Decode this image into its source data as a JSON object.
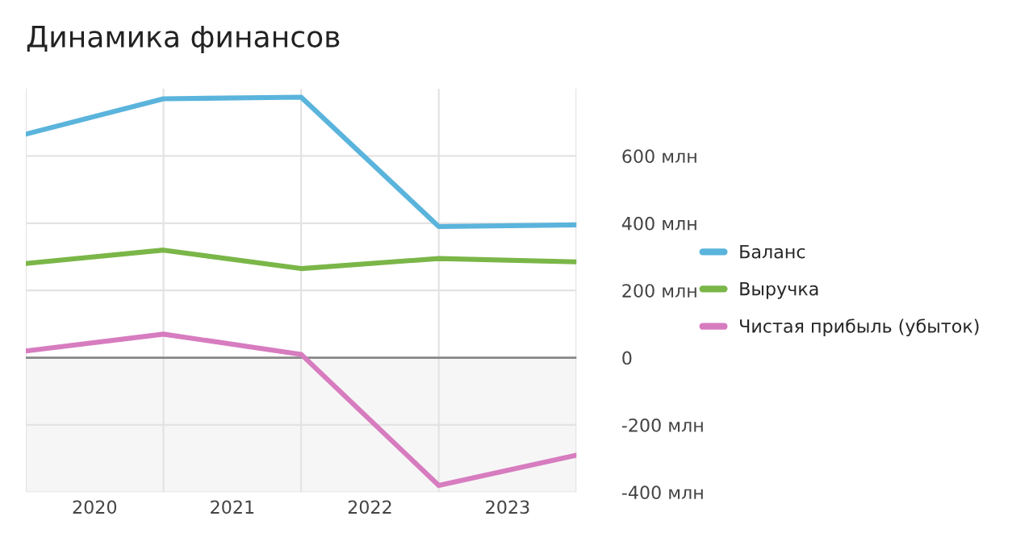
{
  "chart_data": {
    "type": "line",
    "title": "Динамика финансов",
    "x": [
      2020,
      2021,
      2022,
      2023,
      2024
    ],
    "series": [
      {
        "name": "Баланс",
        "color": "#5ab4dc",
        "values": [
          665,
          770,
          775,
          390,
          395
        ]
      },
      {
        "name": "Выручка",
        "color": "#7ab648",
        "values": [
          280,
          320,
          265,
          295,
          285
        ]
      },
      {
        "name": "Чистая прибыль (убыток)",
        "color": "#d77cbf",
        "values": [
          20,
          70,
          10,
          -380,
          -290
        ]
      }
    ],
    "xlim": [
      2020,
      2024
    ],
    "xticks": [
      {
        "value": 2020,
        "label": null
      },
      {
        "value": 2020.5,
        "label": "2020"
      },
      {
        "value": 2021,
        "label": null
      },
      {
        "value": 2021.5,
        "label": "2021"
      },
      {
        "value": 2022,
        "label": null
      },
      {
        "value": 2022.5,
        "label": "2022"
      },
      {
        "value": 2023,
        "label": null
      },
      {
        "value": 2023.5,
        "label": "2023"
      },
      {
        "value": 2024,
        "label": null
      }
    ],
    "ylim": [
      -400,
      800
    ],
    "yticks": [
      {
        "value": -400,
        "label": "-400 млн"
      },
      {
        "value": -200,
        "label": "-200 млн"
      },
      0,
      {
        "value": 200,
        "label": "200 млн"
      },
      {
        "value": 400,
        "label": "400 млн"
      },
      {
        "value": 600,
        "label": "600 млн"
      }
    ],
    "ref_lines": [
      {
        "axis": "y",
        "value": 0,
        "label": null,
        "color": "#888888"
      }
    ],
    "bands": [
      {
        "axis": "y",
        "from": -400,
        "to": 0,
        "label": null,
        "color": "#f6f6f6"
      }
    ],
    "grid": true,
    "legend": "right",
    "marker": "none",
    "line_style": "solid"
  }
}
